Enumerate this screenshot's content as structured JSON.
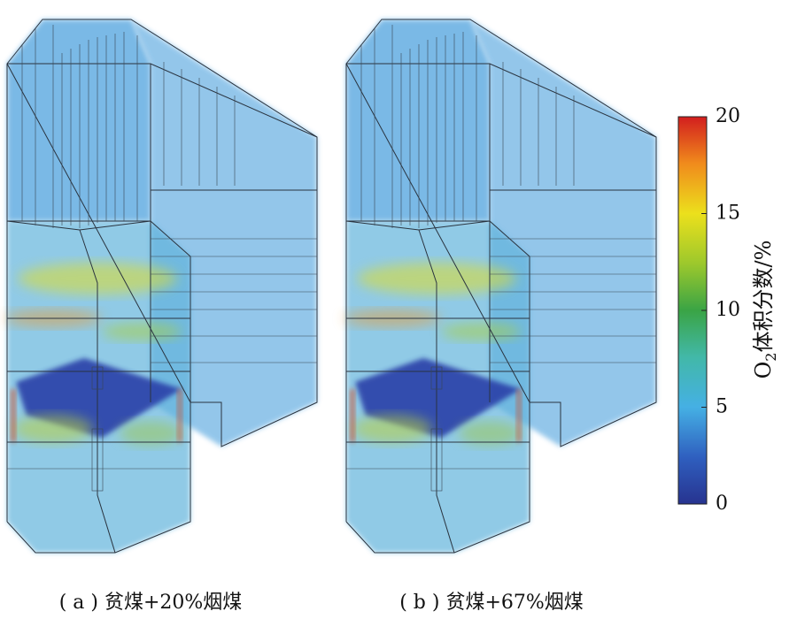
{
  "colorbar": {
    "label": {
      "main": "O",
      "sub": "2",
      "rest": "体积分数/%"
    },
    "range": [
      0,
      20
    ],
    "ticks": [
      0,
      5,
      10,
      15,
      20
    ]
  },
  "panels": [
    {
      "caption": "( a ) 贫煤+20%烟煤"
    },
    {
      "caption": "( b ) 贫煤+67%烟煤"
    }
  ]
}
